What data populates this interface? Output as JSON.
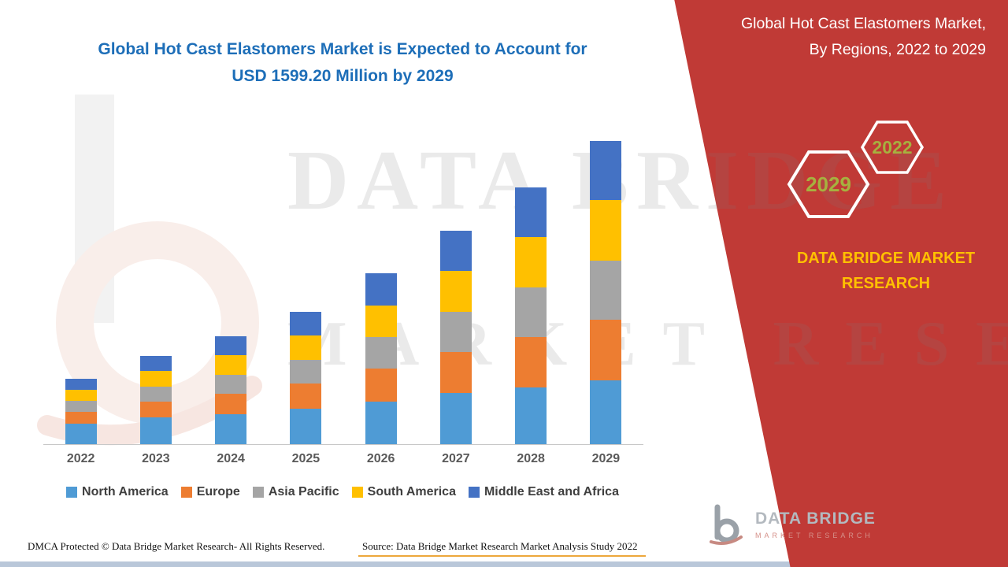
{
  "page": {
    "title_line1": "Global Hot Cast Elastomers Market is Expected to Account for",
    "title_line2": "USD 1599.20 Million by 2029"
  },
  "side_panel": {
    "title_line1": "Global Hot Cast Elastomers Market,",
    "title_line2": "By Regions, 2022 to 2029",
    "badge_front": "2029",
    "badge_back": "2022",
    "brand_line1": "DATA BRIDGE MARKET",
    "brand_line2": "RESEARCH",
    "panel_color": "#C03A36",
    "brand_text_color": "#FFC000",
    "badge_text_color": "#A6B13F"
  },
  "logo": {
    "name": "DATA BRIDGE",
    "tagline": "MARKET RESEARCH"
  },
  "watermark": {
    "line1": "DATA BRIDGE",
    "line2": "MARKET RESEARCH"
  },
  "footer": {
    "dmca": "DMCA Protected © Data Bridge Market Research- All Rights Reserved.",
    "source": "Source: Data Bridge Market Research Market Analysis Study 2022"
  },
  "chart_data": {
    "type": "bar",
    "stacked": true,
    "title": "Global Hot Cast Elastomers Market, By Regions, 2022 to 2029",
    "xlabel": "",
    "ylabel": "",
    "ylim": [
      0,
      1650
    ],
    "grid": false,
    "legend_position": "bottom",
    "categories": [
      "2022",
      "2023",
      "2024",
      "2025",
      "2026",
      "2027",
      "2028",
      "2029"
    ],
    "series": [
      {
        "name": "North America",
        "color": "#4F9BD5",
        "values": [
          107,
          140,
          160,
          189,
          225,
          270,
          298,
          336
        ]
      },
      {
        "name": "Europe",
        "color": "#ED7D31",
        "values": [
          62,
          84,
          106,
          131,
          172,
          218,
          268,
          320
        ]
      },
      {
        "name": "Asia Pacific",
        "color": "#A5A5A5",
        "values": [
          58,
          80,
          100,
          126,
          167,
          212,
          263,
          314
        ]
      },
      {
        "name": "South America",
        "color": "#FFC000",
        "values": [
          60,
          82,
          103,
          128,
          169,
          214,
          265,
          316
        ]
      },
      {
        "name": "Middle East and Africa",
        "color": "#4472C4",
        "values": [
          58,
          79,
          101,
          126,
          167,
          211,
          261,
          313.2
        ]
      }
    ],
    "totals": [
      345,
      465,
      570,
      700,
      900,
      1125,
      1355,
      1599.2
    ],
    "annotation": "USD 1599.20 Million by 2029"
  }
}
